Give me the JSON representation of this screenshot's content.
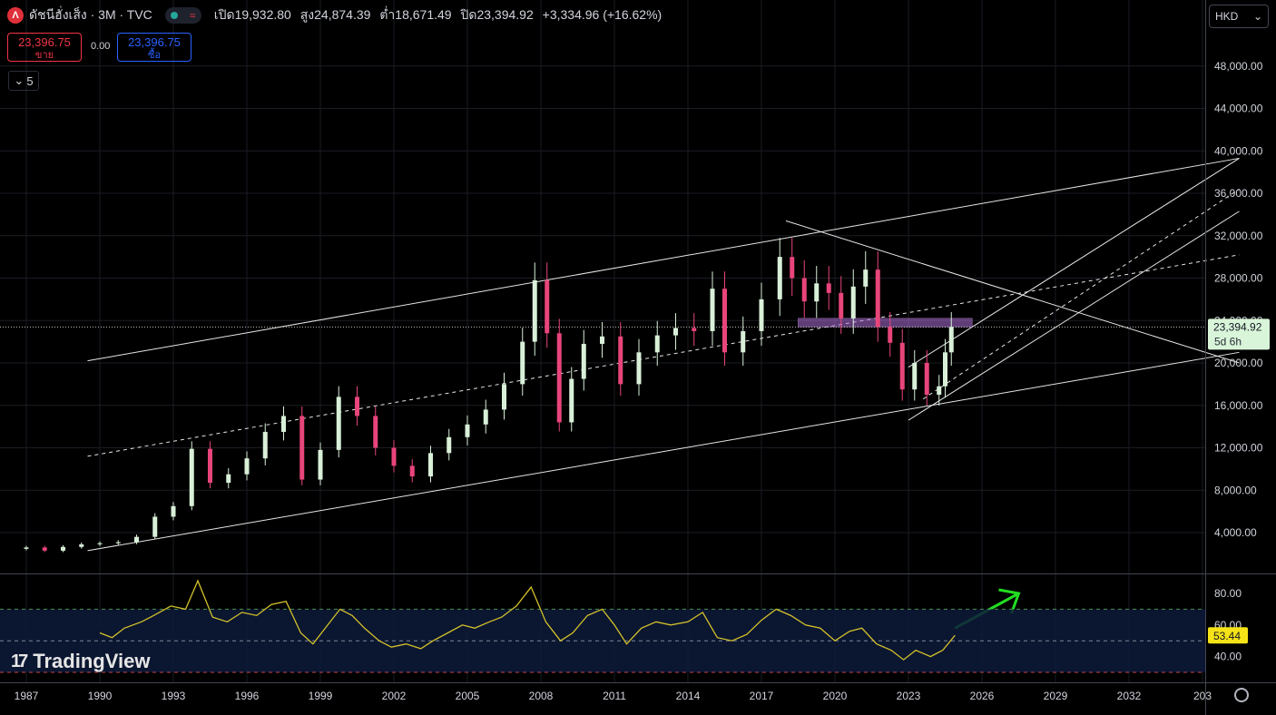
{
  "header": {
    "logo_letter": "Λ",
    "symbol": "ดัชนีฮั่งเส็ง · 3M · TVC",
    "ohlc": [
      {
        "k": "เปิด",
        "v": "19,932.80"
      },
      {
        "k": "สูง",
        "v": "24,874.39"
      },
      {
        "k": "ต่ำ",
        "v": "18,671.49"
      },
      {
        "k": "ปิด",
        "v": "23,394.92"
      }
    ],
    "change": "+3,334.96 (+16.62%)",
    "approx_icon": "≈"
  },
  "trade": {
    "sell_price": "23,396.75",
    "sell_label": "ขาย",
    "spread": "0.00",
    "buy_price": "23,396.75",
    "buy_label": "ซื้อ"
  },
  "indicators_count": "5",
  "currency": "HKD",
  "price_label": {
    "value": "23,394.92",
    "countdown": "5d 6h"
  },
  "rsi_label": "53.44",
  "brand": "TradingView",
  "colors": {
    "up": "#d8f0d8",
    "down": "#e8457a",
    "rsi": "#d4c22a",
    "accent_arrow": "#22dd22",
    "zone": "#b070d8"
  },
  "chart_data": [
    {
      "type": "candlestick",
      "interval": "3M",
      "x_ticks": [
        "1987",
        "1990",
        "1993",
        "1996",
        "1999",
        "2002",
        "2005",
        "2008",
        "2011",
        "2014",
        "2017",
        "2020",
        "2023",
        "2026",
        "2029",
        "2032",
        "203"
      ],
      "y_ticks": [
        "4,000.00",
        "8,000.00",
        "12,000.00",
        "16,000.00",
        "20,000.00",
        "24,000.00",
        "28,000.00",
        "32,000.00",
        "36,000.00",
        "40,000.00",
        "44,000.00",
        "48,000.00"
      ],
      "ylim": [
        2000,
        52000
      ],
      "last_close": 23394.92,
      "closes": [
        [
          1987.0,
          2600
        ],
        [
          1987.75,
          2300
        ],
        [
          1988.5,
          2650
        ],
        [
          1989.25,
          2900
        ],
        [
          1990.0,
          3000
        ],
        [
          1990.75,
          3100
        ],
        [
          1991.5,
          3600
        ],
        [
          1992.25,
          5500
        ],
        [
          1993.0,
          6500
        ],
        [
          1993.75,
          11900
        ],
        [
          1994.5,
          8700
        ],
        [
          1995.25,
          9500
        ],
        [
          1996.0,
          11000
        ],
        [
          1996.75,
          13500
        ],
        [
          1997.5,
          15000
        ],
        [
          1998.25,
          9000
        ],
        [
          1999.0,
          11800
        ],
        [
          1999.75,
          16800
        ],
        [
          2000.5,
          15000
        ],
        [
          2001.25,
          12000
        ],
        [
          2002.0,
          10300
        ],
        [
          2002.75,
          9300
        ],
        [
          2003.5,
          11500
        ],
        [
          2004.25,
          13000
        ],
        [
          2005.0,
          14200
        ],
        [
          2005.75,
          15600
        ],
        [
          2006.5,
          18000
        ],
        [
          2007.25,
          22000
        ],
        [
          2007.75,
          27800
        ],
        [
          2008.25,
          22800
        ],
        [
          2008.75,
          14400
        ],
        [
          2009.25,
          18500
        ],
        [
          2009.75,
          21800
        ],
        [
          2010.5,
          22500
        ],
        [
          2011.25,
          18000
        ],
        [
          2012.0,
          21000
        ],
        [
          2012.75,
          22600
        ],
        [
          2013.5,
          23300
        ],
        [
          2014.25,
          23000
        ],
        [
          2015.0,
          27000
        ],
        [
          2015.5,
          21000
        ],
        [
          2016.25,
          23000
        ],
        [
          2017.0,
          26000
        ],
        [
          2017.75,
          30000
        ],
        [
          2018.25,
          28000
        ],
        [
          2018.75,
          25800
        ],
        [
          2019.25,
          27500
        ],
        [
          2019.75,
          26600
        ],
        [
          2020.25,
          24200
        ],
        [
          2020.75,
          27200
        ],
        [
          2021.25,
          28800
        ],
        [
          2021.75,
          23400
        ],
        [
          2022.25,
          21900
        ],
        [
          2022.75,
          17500
        ],
        [
          2023.25,
          20000
        ],
        [
          2023.75,
          17000
        ],
        [
          2024.25,
          17800
        ],
        [
          2024.5,
          21000
        ],
        [
          2024.75,
          23394.92
        ]
      ]
    },
    {
      "type": "line",
      "name": "RSI",
      "ylim": [
        30,
        95
      ],
      "y_ticks": [
        "40.00",
        "60.00",
        "80.00"
      ],
      "levels": [
        70,
        50,
        30
      ],
      "last": 53.44,
      "values": [
        [
          1990.0,
          55
        ],
        [
          1990.5,
          52
        ],
        [
          1991.0,
          58
        ],
        [
          1991.7,
          62
        ],
        [
          1992.2,
          66
        ],
        [
          1992.9,
          72
        ],
        [
          1993.5,
          70
        ],
        [
          1994.0,
          88
        ],
        [
          1994.6,
          65
        ],
        [
          1995.2,
          62
        ],
        [
          1995.8,
          68
        ],
        [
          1996.4,
          66
        ],
        [
          1997.0,
          73
        ],
        [
          1997.6,
          75
        ],
        [
          1998.2,
          55
        ],
        [
          1998.7,
          48
        ],
        [
          1999.2,
          58
        ],
        [
          1999.8,
          70
        ],
        [
          2000.3,
          66
        ],
        [
          2000.8,
          58
        ],
        [
          2001.4,
          50
        ],
        [
          2001.9,
          46
        ],
        [
          2002.5,
          48
        ],
        [
          2003.1,
          45
        ],
        [
          2003.6,
          50
        ],
        [
          2004.2,
          55
        ],
        [
          2004.8,
          60
        ],
        [
          2005.3,
          58
        ],
        [
          2005.9,
          62
        ],
        [
          2006.4,
          65
        ],
        [
          2007.0,
          72
        ],
        [
          2007.6,
          84
        ],
        [
          2008.2,
          62
        ],
        [
          2008.8,
          50
        ],
        [
          2009.3,
          55
        ],
        [
          2009.9,
          66
        ],
        [
          2010.5,
          70
        ],
        [
          2011.0,
          60
        ],
        [
          2011.5,
          48
        ],
        [
          2012.1,
          58
        ],
        [
          2012.7,
          62
        ],
        [
          2013.3,
          60
        ],
        [
          2014.0,
          62
        ],
        [
          2014.6,
          68
        ],
        [
          2015.2,
          52
        ],
        [
          2015.8,
          50
        ],
        [
          2016.4,
          54
        ],
        [
          2017.0,
          63
        ],
        [
          2017.6,
          70
        ],
        [
          2018.2,
          66
        ],
        [
          2018.8,
          60
        ],
        [
          2019.4,
          58
        ],
        [
          2020.0,
          50
        ],
        [
          2020.6,
          56
        ],
        [
          2021.1,
          58
        ],
        [
          2021.7,
          48
        ],
        [
          2022.3,
          44
        ],
        [
          2022.8,
          38
        ],
        [
          2023.3,
          44
        ],
        [
          2023.9,
          40
        ],
        [
          2024.4,
          44
        ],
        [
          2024.9,
          53.44
        ]
      ]
    }
  ]
}
